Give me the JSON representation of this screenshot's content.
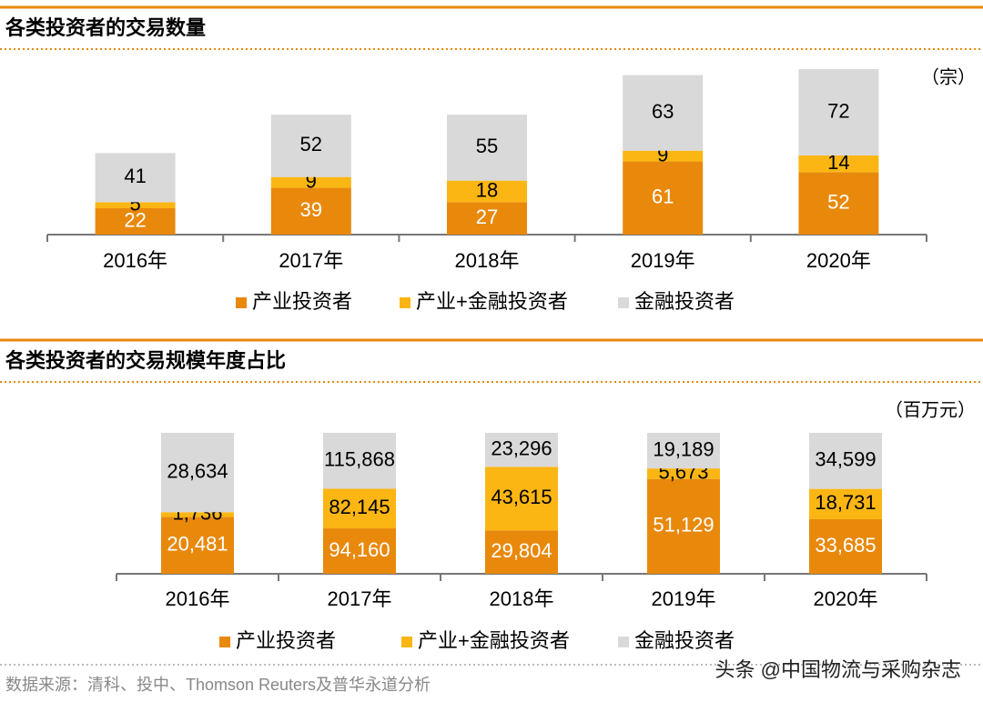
{
  "chart_data": [
    {
      "type": "bar",
      "stacked": true,
      "normalize": false,
      "title": "各类投资者的交易数量",
      "unit": "（宗）",
      "categories": [
        "2016年",
        "2017年",
        "2018年",
        "2019年",
        "2020年"
      ],
      "series": [
        {
          "name": "产业投资者",
          "color": "#e8890c",
          "values": [
            22,
            39,
            27,
            61,
            52
          ]
        },
        {
          "name": "产业+金融投资者",
          "color": "#fbb614",
          "values": [
            5,
            9,
            18,
            9,
            14
          ]
        },
        {
          "name": "金融投资者",
          "color": "#d9d9d9",
          "values": [
            41,
            52,
            55,
            63,
            72
          ]
        }
      ]
    },
    {
      "type": "bar",
      "stacked": true,
      "normalize": true,
      "title": "各类投资者的交易规模年度占比",
      "unit": "（百万元）",
      "categories": [
        "2016年",
        "2017年",
        "2018年",
        "2019年",
        "2020年"
      ],
      "series": [
        {
          "name": "产业投资者",
          "color": "#e8890c",
          "values": [
            20481,
            94160,
            29804,
            51129,
            33685
          ],
          "value_labels": [
            "20,481",
            "94,160",
            "29,804",
            "51,129",
            "33,685"
          ]
        },
        {
          "name": "产业+金融投资者",
          "color": "#fbb614",
          "values": [
            1736,
            82145,
            43615,
            5673,
            18731
          ],
          "value_labels": [
            "1,736",
            "82,145",
            "43,615",
            "5,673",
            "18,731"
          ]
        },
        {
          "name": "金融投资者",
          "color": "#d9d9d9",
          "values": [
            28634,
            115868,
            23296,
            19189,
            34599
          ],
          "value_labels": [
            "28,634",
            "115,868",
            "23,296",
            "19,189",
            "34,599"
          ]
        }
      ]
    }
  ],
  "source": "数据来源：清科、投中、Thomson Reuters及普华永道分析",
  "watermark": "头条 @中国物流与采购杂志"
}
